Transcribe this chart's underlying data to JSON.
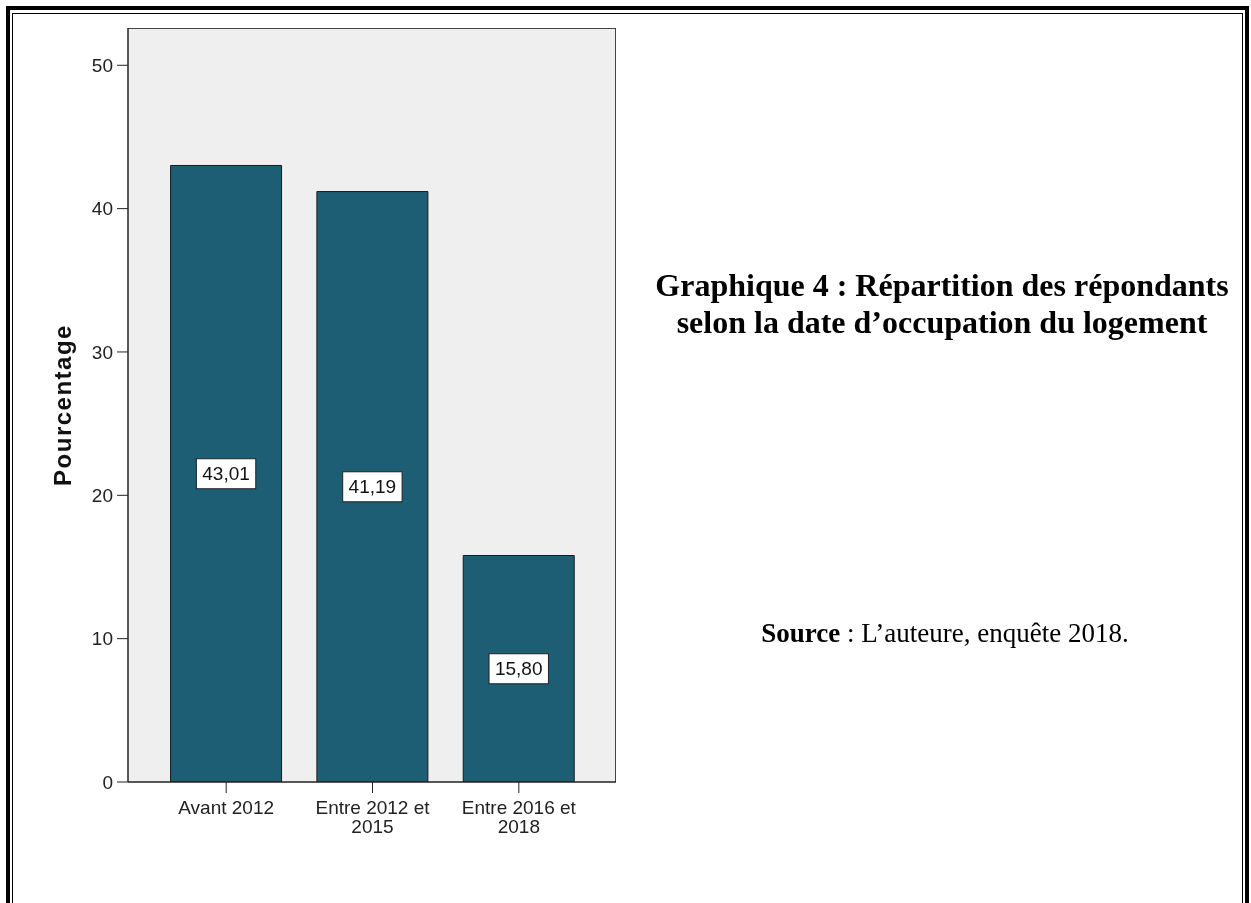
{
  "chart_data": {
    "type": "bar",
    "title": "Graphique 4 : Répartition des répondants selon la date d’occupation du logement",
    "ylabel": "Pourcentage",
    "categories": [
      "Avant 2012",
      "Entre 2012 et 2015",
      "Entre 2016 et 2018"
    ],
    "values": [
      43.01,
      41.19,
      15.8
    ],
    "value_labels": [
      "43,01",
      "41,19",
      "15,80"
    ],
    "color": "#1e5e75",
    "ylim": [
      0,
      52.6
    ],
    "yticks": [
      0,
      10,
      20,
      30,
      40,
      50
    ],
    "annotations": [
      "Source : L’auteure, enquête 2018."
    ]
  }
}
